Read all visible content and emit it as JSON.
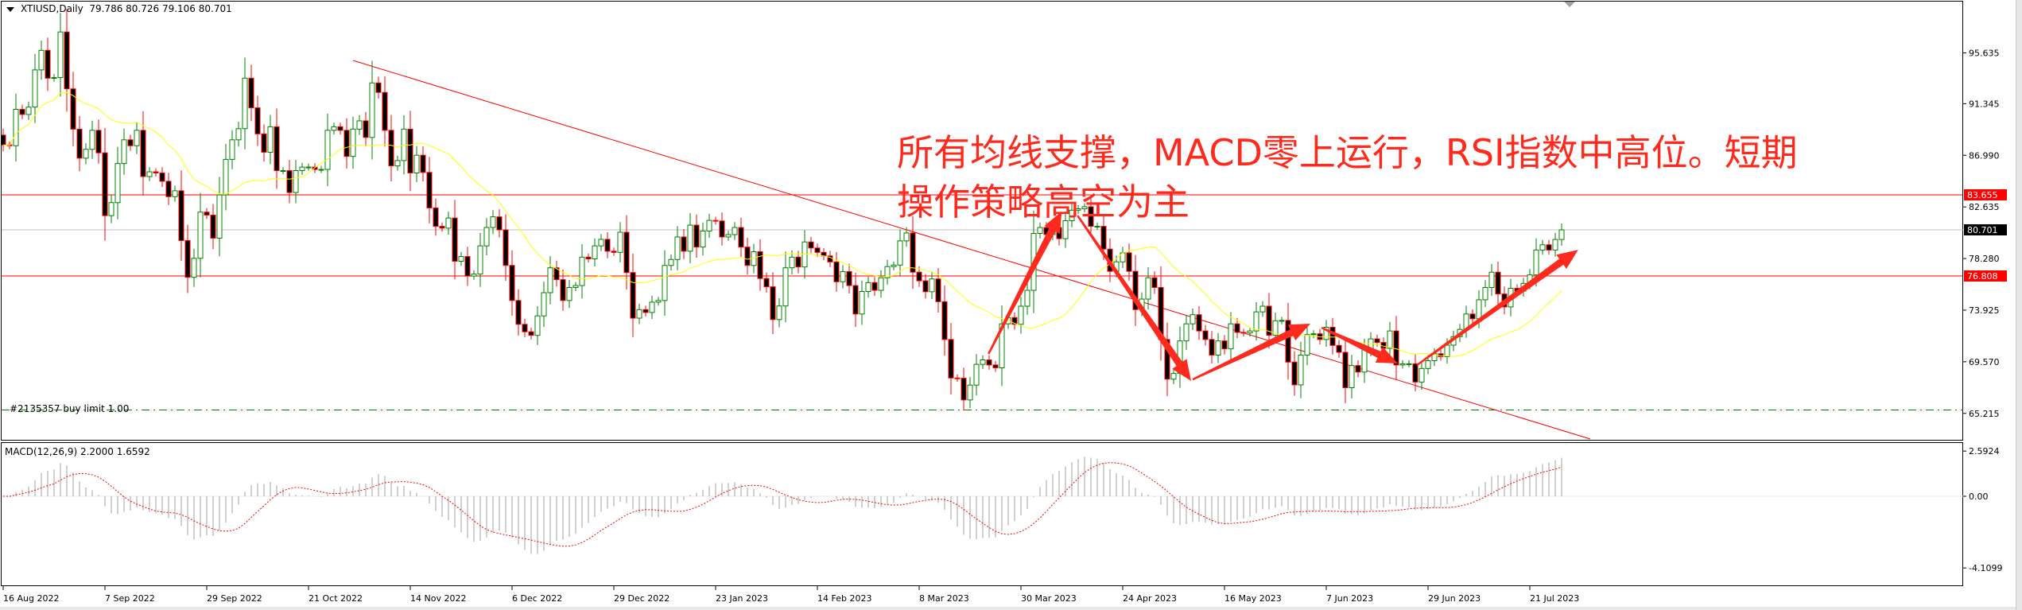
{
  "header": {
    "symbol_line": "XTIUSD,Daily",
    "ohlc": "79.786 80.726 79.106 80.701"
  },
  "order_label": "#2135357 buy limit 1.00",
  "annotation": {
    "line1": "所有均线支撑，MACD零上运行，RSI指数中高位。短期",
    "line2": "操作策略高空为主",
    "color": "#ff2a1e"
  },
  "price_axis": {
    "ticks": [
      "95.635",
      "91.345",
      "86.990",
      "82.635",
      "78.280",
      "73.925",
      "69.570",
      "65.215"
    ],
    "badges": [
      {
        "value": "83.655",
        "bg": "#ff0000",
        "fg": "#ffffff"
      },
      {
        "value": "80.701",
        "bg": "#000000",
        "fg": "#ffffff"
      },
      {
        "value": "76.808",
        "bg": "#ff0000",
        "fg": "#ffffff"
      }
    ]
  },
  "macd": {
    "label": "MACD(12,26,9) 2.2000 1.6592",
    "ticks": [
      "2.5924",
      "0.00",
      "-4.1099"
    ],
    "params": [
      12,
      26,
      9
    ],
    "histogram_color": "#c0c0c0",
    "signal_color": "#ff0000"
  },
  "time_axis": [
    "16 Aug 2022",
    "7 Sep 2022",
    "29 Sep 2022",
    "21 Oct 2022",
    "14 Nov 2022",
    "6 Dec 2022",
    "29 Dec 2022",
    "23 Jan 2023",
    "14 Feb 2023",
    "8 Mar 2023",
    "30 Mar 2023",
    "24 Apr 2023",
    "16 May 2023",
    "7 Jun 2023",
    "29 Jun 2023",
    "21 Jul 2023"
  ],
  "chart_data": {
    "type": "candlestick",
    "symbol": "XTIUSD",
    "timeframe": "Daily",
    "ylim": [
      63.0,
      99.0
    ],
    "up_color": "#008000",
    "down_color": "#ff0000",
    "ma": {
      "type": "SMA",
      "period": 20,
      "color": "#ffff00"
    },
    "first_open": 88.7,
    "closes": [
      87.87,
      87.8,
      90.87,
      90.44,
      91.06,
      94.2,
      95.85,
      93.5,
      93.55,
      97.4,
      92.6,
      89.2,
      86.75,
      87.5,
      89.1,
      87.2,
      81.9,
      83.0,
      86.3,
      88.3,
      87.8,
      89.1,
      85.2,
      85.6,
      85.5,
      84.8,
      83.5,
      84.0,
      79.8,
      76.7,
      78.3,
      82.2,
      81.95,
      80.0,
      83.65,
      86.65,
      88.3,
      89.24,
      93.5,
      91.0,
      88.8,
      87.25,
      89.4,
      85.7,
      85.7,
      83.85,
      85.7,
      86.0,
      86.0,
      85.8,
      85.8,
      89.1,
      89.4,
      89.1,
      86.9,
      89.2,
      89.9,
      88.5,
      93.1,
      92.3,
      89.1,
      86.1,
      86.55,
      89.2,
      85.5,
      87.0,
      85.55,
      82.55,
      81.0,
      80.85,
      81.7,
      78.05,
      78.45,
      76.8,
      76.97,
      79.35,
      80.9,
      81.8,
      80.7,
      77.7,
      74.74,
      72.73,
      72.1,
      71.8,
      73.44,
      75.4,
      77.5,
      76.5,
      74.74,
      75.84,
      76.0,
      78.4,
      78.25,
      79.35,
      79.9,
      78.9,
      78.8,
      80.5,
      77.1,
      73.25,
      73.97,
      73.73,
      74.6,
      74.74,
      77.7,
      78.2,
      80.1,
      78.9,
      81.1,
      79.25,
      80.6,
      81.5,
      81.45,
      80.1,
      80.3,
      80.9,
      79.25,
      77.7,
      78.86,
      76.6,
      75.9,
      73.13,
      74.28,
      77.5,
      78.4,
      77.57,
      79.68,
      79.17,
      78.8,
      78.5,
      77.99,
      76.32,
      77.18,
      76.0,
      73.6,
      75.5,
      76.25,
      75.6,
      76.66,
      77.6,
      77.73,
      79.77,
      80.44,
      77.13,
      76.4,
      75.48,
      76.56,
      74.64,
      71.45,
      68.2,
      68.18,
      66.35,
      67.6,
      69.35,
      69.73,
      69.3,
      69.06,
      72.77,
      73.3,
      72.73,
      74.26,
      75.6,
      80.4,
      80.9,
      80.3,
      80.9,
      79.96,
      81.47,
      82.36,
      82.48,
      82.65,
      81.0,
      81.0,
      79.08,
      77.2,
      78.0,
      78.76,
      77.2,
      73.97,
      74.86,
      76.66,
      75.84,
      71.45,
      68.1,
      68.58,
      71.33,
      72.77,
      73.54,
      72.17,
      71.45,
      70.13,
      71.33,
      70.66,
      72.77,
      72.05,
      72.0,
      72.17,
      73.78,
      74.26,
      71.8,
      73.03,
      73.06,
      69.54,
      67.62,
      70.13,
      71.86,
      71.93,
      71.45,
      72.48,
      70.95,
      70.37,
      67.38,
      69.25,
      68.7,
      70.6,
      71.5,
      71.2,
      70.7,
      72.17,
      69.3,
      69.4,
      69.4,
      67.86,
      69.0,
      69.66,
      70.25,
      70.0,
      70.97,
      71.69,
      72.3,
      73.6,
      73.2,
      74.8,
      75.84,
      77.13,
      75.29,
      74.2,
      75.77,
      75.53,
      76.18,
      76.9,
      79.0,
      79.44,
      79.0,
      79.89,
      80.701
    ],
    "horizontal_lines": [
      {
        "price": 83.655,
        "color": "#ff0000",
        "style": "solid"
      },
      {
        "price": 80.701,
        "color": "#c0c0c0",
        "style": "solid"
      },
      {
        "price": 76.808,
        "color": "#ff0000",
        "style": "solid"
      },
      {
        "price": 65.5,
        "color": "#008000",
        "style": "dash-dot"
      }
    ],
    "trendline": {
      "from": {
        "bar": 55,
        "price": 95.0
      },
      "to": {
        "bar": 249.5,
        "price": 63.05
      },
      "color": "#ff0000"
    },
    "arrows": [
      {
        "from": {
          "bar": 154.9,
          "price": 70.23
        },
        "to": {
          "bar": 166.4,
          "price": 82.25
        }
      },
      {
        "from": {
          "bar": 168.9,
          "price": 81.91
        },
        "to": {
          "bar": 186.75,
          "price": 67.95
        }
      },
      {
        "from": {
          "bar": 187,
          "price": 68.08
        },
        "to": {
          "bar": 205.5,
          "price": 72.78
        }
      },
      {
        "from": {
          "bar": 207.25,
          "price": 72.45
        },
        "to": {
          "bar": 219.25,
          "price": 69.43
        }
      },
      {
        "from": {
          "bar": 222.25,
          "price": 69.29
        },
        "to": {
          "bar": 247.6,
          "price": 79.02
        }
      }
    ],
    "arrow_color": "#ff2a1e"
  }
}
